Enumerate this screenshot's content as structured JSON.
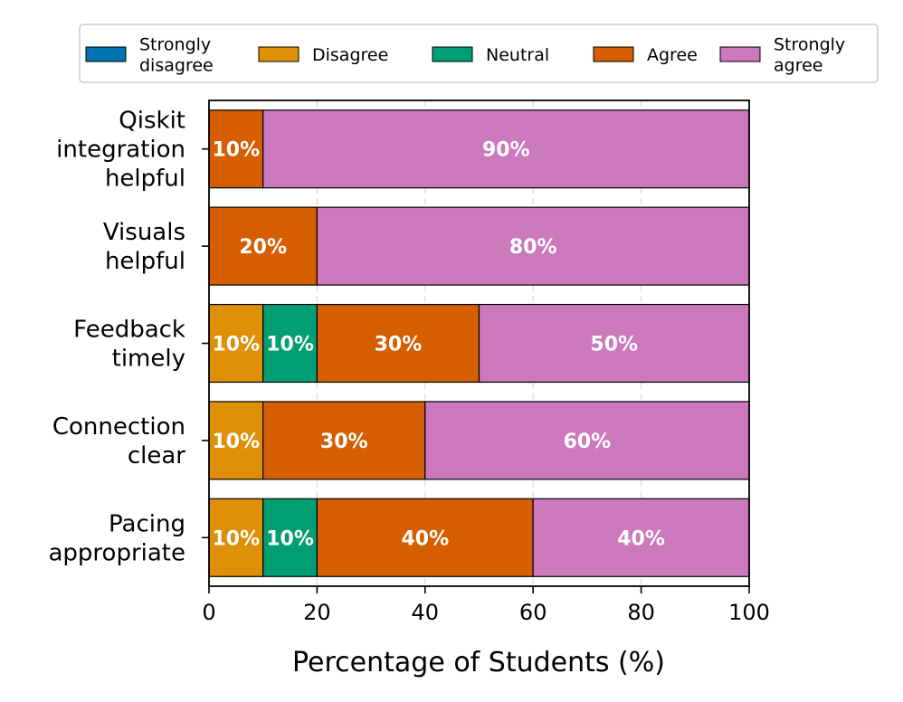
{
  "chart_data": {
    "type": "bar",
    "orientation": "horizontal",
    "stacked": true,
    "title": "",
    "xlabel": "Percentage of Students (%)",
    "ylabel": "",
    "xlim": [
      0,
      100
    ],
    "xticks": [
      0,
      20,
      40,
      60,
      80,
      100
    ],
    "grid": "vertical dashed",
    "legend_position": "top",
    "categories": [
      "Qiskit integration helpful",
      "Visuals helpful",
      "Feedback timely",
      "Connection clear",
      "Pacing appropriate"
    ],
    "category_label_lines": [
      [
        "Qiskit",
        "integration",
        "helpful"
      ],
      [
        "Visuals",
        "helpful"
      ],
      [
        "Feedback",
        "timely"
      ],
      [
        "Connection",
        "clear"
      ],
      [
        "Pacing",
        "appropriate"
      ]
    ],
    "series": [
      {
        "name": "Strongly disagree",
        "legend_lines": [
          "Strongly",
          "disagree"
        ],
        "color": "#0173b2",
        "values": [
          0,
          0,
          0,
          0,
          0
        ]
      },
      {
        "name": "Disagree",
        "legend_lines": [
          "Disagree"
        ],
        "color": "#de8f05",
        "values": [
          0,
          0,
          10,
          10,
          10
        ]
      },
      {
        "name": "Neutral",
        "legend_lines": [
          "Neutral"
        ],
        "color": "#029e73",
        "values": [
          0,
          0,
          10,
          0,
          10
        ]
      },
      {
        "name": "Agree",
        "legend_lines": [
          "Agree"
        ],
        "color": "#d55e00",
        "values": [
          10,
          20,
          30,
          30,
          40
        ]
      },
      {
        "name": "Strongly agree",
        "legend_lines": [
          "Strongly",
          "agree"
        ],
        "color": "#cc78bc",
        "values": [
          90,
          80,
          50,
          60,
          40
        ]
      }
    ],
    "label_suffix": "%"
  }
}
